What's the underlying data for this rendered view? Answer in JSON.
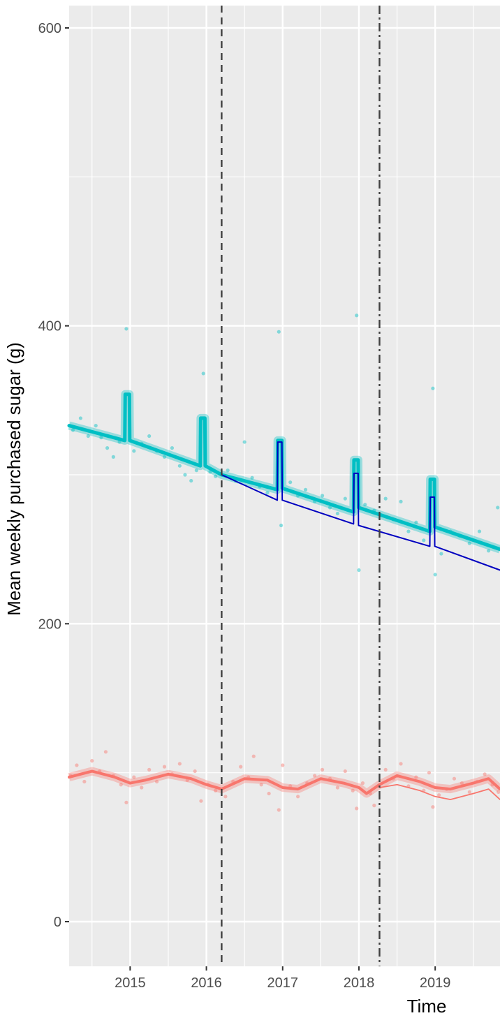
{
  "chart_data": {
    "type": "line",
    "xlabel": "Time",
    "ylabel": "Mean weekly purchased sugar (g)",
    "xlim": [
      2014.2,
      2019.85
    ],
    "ylim": [
      -30,
      615
    ],
    "x_ticks": [
      2015,
      2016,
      2017,
      2018,
      2019
    ],
    "x_tick_labels": [
      "2015",
      "2016",
      "2017",
      "2018",
      "2019"
    ],
    "y_ticks": [
      0,
      200,
      400,
      600
    ],
    "y_tick_labels": [
      "0",
      "200",
      "400",
      "600"
    ],
    "grid": true,
    "legend": "none",
    "colors": {
      "panel": "#ebebeb",
      "grid": "#ffffff",
      "teal": "#00bfc4",
      "red": "#f8766d",
      "counterfactual_blue": "#0000c0",
      "vline": "#404040"
    },
    "vertical_lines": [
      {
        "x": 2016.2,
        "style": "dashed"
      },
      {
        "x": 2018.27,
        "style": "dashdot"
      }
    ],
    "series": [
      {
        "key": "teal_fitted",
        "color": "#00bfc4",
        "x": [
          2014.2,
          2014.93,
          2014.935,
          2014.99,
          2014.995,
          2015.92,
          2015.925,
          2015.98,
          2015.985,
          2016.2,
          2016.93,
          2016.935,
          2016.99,
          2016.995,
          2017.93,
          2017.935,
          2017.99,
          2017.995,
          2018.93,
          2018.935,
          2018.99,
          2018.995,
          2019.85
        ],
        "y": [
          333,
          323,
          354,
          354,
          323,
          306,
          338,
          338,
          306,
          300,
          290,
          323,
          323,
          291,
          275,
          310,
          310,
          278,
          262,
          297,
          297,
          265,
          250
        ]
      },
      {
        "key": "teal_counterfactual",
        "color": "#0000c0",
        "x": [
          2016.2,
          2016.93,
          2016.935,
          2016.99,
          2016.995,
          2017.93,
          2017.935,
          2017.99,
          2017.995,
          2018.93,
          2018.935,
          2018.99,
          2018.995,
          2019.85
        ],
        "y": [
          300,
          283,
          322,
          322,
          283,
          267,
          301,
          301,
          266,
          252,
          285,
          285,
          252,
          236
        ]
      },
      {
        "key": "red_fitted",
        "color": "#f8766d",
        "x": [
          2014.2,
          2014.5,
          2014.8,
          2015.0,
          2015.2,
          2015.5,
          2015.8,
          2016.0,
          2016.2,
          2016.5,
          2016.8,
          2017.0,
          2017.2,
          2017.5,
          2017.8,
          2018.0,
          2018.1,
          2018.27,
          2018.5,
          2018.8,
          2019.0,
          2019.2,
          2019.5,
          2019.7,
          2019.85
        ],
        "y": [
          97,
          101,
          97,
          93,
          95,
          99,
          96,
          92,
          89,
          96,
          95,
          90,
          89,
          96,
          93,
          90,
          86,
          92,
          98,
          94,
          90,
          89,
          93,
          96,
          89
        ]
      },
      {
        "key": "red_counterfactual",
        "color": "#f8766d",
        "x": [
          2018.27,
          2018.5,
          2018.8,
          2019.0,
          2019.2,
          2019.5,
          2019.7,
          2019.85
        ],
        "y": [
          90,
          92,
          88,
          84,
          82,
          86,
          89,
          82
        ]
      }
    ],
    "points": {
      "teal": [
        [
          2014.25,
          330
        ],
        [
          2014.35,
          338
        ],
        [
          2014.45,
          326
        ],
        [
          2014.55,
          333
        ],
        [
          2014.62,
          325
        ],
        [
          2014.7,
          318
        ],
        [
          2014.78,
          312
        ],
        [
          2014.86,
          322
        ],
        [
          2014.95,
          398
        ],
        [
          2015.05,
          316
        ],
        [
          2015.15,
          321
        ],
        [
          2015.25,
          326
        ],
        [
          2015.35,
          316
        ],
        [
          2015.45,
          312
        ],
        [
          2015.55,
          318
        ],
        [
          2015.65,
          306
        ],
        [
          2015.72,
          300
        ],
        [
          2015.8,
          296
        ],
        [
          2015.87,
          303
        ],
        [
          2015.96,
          368
        ],
        [
          2016.05,
          302
        ],
        [
          2016.12,
          299
        ],
        [
          2016.28,
          303
        ],
        [
          2016.38,
          296
        ],
        [
          2016.5,
          322
        ],
        [
          2016.6,
          298
        ],
        [
          2016.7,
          292
        ],
        [
          2016.8,
          288
        ],
        [
          2016.95,
          396
        ],
        [
          2016.98,
          266
        ],
        [
          2017.1,
          295
        ],
        [
          2017.2,
          286
        ],
        [
          2017.3,
          290
        ],
        [
          2017.42,
          282
        ],
        [
          2017.52,
          286
        ],
        [
          2017.62,
          278
        ],
        [
          2017.72,
          274
        ],
        [
          2017.82,
          284
        ],
        [
          2017.97,
          407
        ],
        [
          2018.0,
          236
        ],
        [
          2018.08,
          280
        ],
        [
          2018.2,
          276
        ],
        [
          2018.35,
          284
        ],
        [
          2018.45,
          270
        ],
        [
          2018.55,
          282
        ],
        [
          2018.65,
          262
        ],
        [
          2018.75,
          268
        ],
        [
          2018.85,
          256
        ],
        [
          2018.97,
          358
        ],
        [
          2019.0,
          233
        ],
        [
          2019.08,
          247
        ],
        [
          2019.2,
          262
        ],
        [
          2019.32,
          259
        ],
        [
          2019.45,
          254
        ],
        [
          2019.58,
          262
        ],
        [
          2019.7,
          249
        ],
        [
          2019.82,
          278
        ]
      ],
      "red": [
        [
          2014.22,
          98
        ],
        [
          2014.3,
          105
        ],
        [
          2014.4,
          94
        ],
        [
          2014.5,
          108
        ],
        [
          2014.6,
          101
        ],
        [
          2014.68,
          114
        ],
        [
          2014.78,
          98
        ],
        [
          2014.88,
          92
        ],
        [
          2014.95,
          80
        ],
        [
          2015.05,
          97
        ],
        [
          2015.15,
          90
        ],
        [
          2015.25,
          102
        ],
        [
          2015.35,
          94
        ],
        [
          2015.45,
          104
        ],
        [
          2015.55,
          99
        ],
        [
          2015.65,
          106
        ],
        [
          2015.75,
          95
        ],
        [
          2015.85,
          101
        ],
        [
          2015.93,
          81
        ],
        [
          2016.02,
          92
        ],
        [
          2016.12,
          88
        ],
        [
          2016.25,
          84
        ],
        [
          2016.35,
          94
        ],
        [
          2016.45,
          104
        ],
        [
          2016.55,
          97
        ],
        [
          2016.62,
          111
        ],
        [
          2016.72,
          92
        ],
        [
          2016.82,
          86
        ],
        [
          2016.95,
          75
        ],
        [
          2017.0,
          105
        ],
        [
          2017.1,
          91
        ],
        [
          2017.2,
          84
        ],
        [
          2017.32,
          93
        ],
        [
          2017.42,
          98
        ],
        [
          2017.52,
          102
        ],
        [
          2017.62,
          96
        ],
        [
          2017.72,
          90
        ],
        [
          2017.82,
          101
        ],
        [
          2017.92,
          88
        ],
        [
          2017.97,
          76
        ],
        [
          2018.05,
          93
        ],
        [
          2018.15,
          86
        ],
        [
          2018.2,
          78
        ],
        [
          2018.35,
          102
        ],
        [
          2018.45,
          96
        ],
        [
          2018.55,
          106
        ],
        [
          2018.65,
          91
        ],
        [
          2018.75,
          97
        ],
        [
          2018.85,
          88
        ],
        [
          2018.92,
          100
        ],
        [
          2018.97,
          77
        ],
        [
          2019.05,
          85
        ],
        [
          2019.15,
          89
        ],
        [
          2019.25,
          96
        ],
        [
          2019.35,
          93
        ],
        [
          2019.45,
          87
        ],
        [
          2019.55,
          94
        ],
        [
          2019.65,
          99
        ],
        [
          2019.75,
          92
        ],
        [
          2019.83,
          87
        ]
      ]
    }
  }
}
